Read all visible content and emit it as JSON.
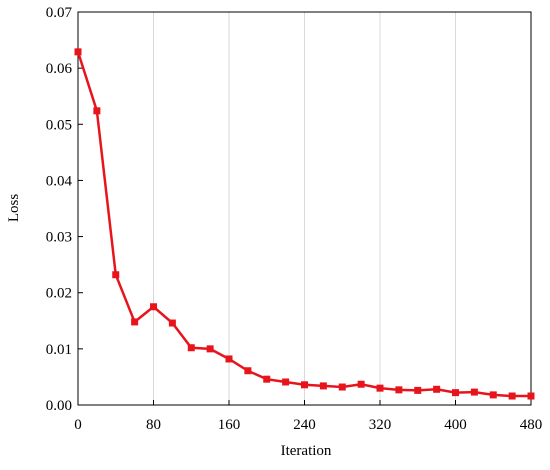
{
  "chart_data": {
    "type": "line",
    "x_label": "Iteration",
    "y_label": "Loss",
    "x": [
      0,
      20,
      40,
      60,
      80,
      100,
      120,
      140,
      160,
      180,
      200,
      220,
      240,
      260,
      280,
      300,
      320,
      340,
      360,
      380,
      400,
      420,
      440,
      460,
      480
    ],
    "series": [
      {
        "color": "#e8141c",
        "values": [
          0.0629,
          0.0524,
          0.0232,
          0.0148,
          0.0175,
          0.0146,
          0.0102,
          0.01,
          0.0082,
          0.0061,
          0.0046,
          0.0041,
          0.0036,
          0.0034,
          0.0032,
          0.0037,
          0.003,
          0.0027,
          0.0026,
          0.0028,
          0.0022,
          0.0023,
          0.0018,
          0.0016,
          0.0016
        ]
      }
    ],
    "xlim": [
      0,
      480
    ],
    "xticks": [
      0,
      80,
      160,
      240,
      320,
      400,
      480
    ],
    "ylim": [
      0,
      0.07
    ],
    "yticks": [
      {
        "value": 0,
        "label": "0.00"
      },
      0.01,
      0.02,
      0.03,
      0.04,
      0.05,
      0.06,
      0.07
    ],
    "grid": "x"
  }
}
